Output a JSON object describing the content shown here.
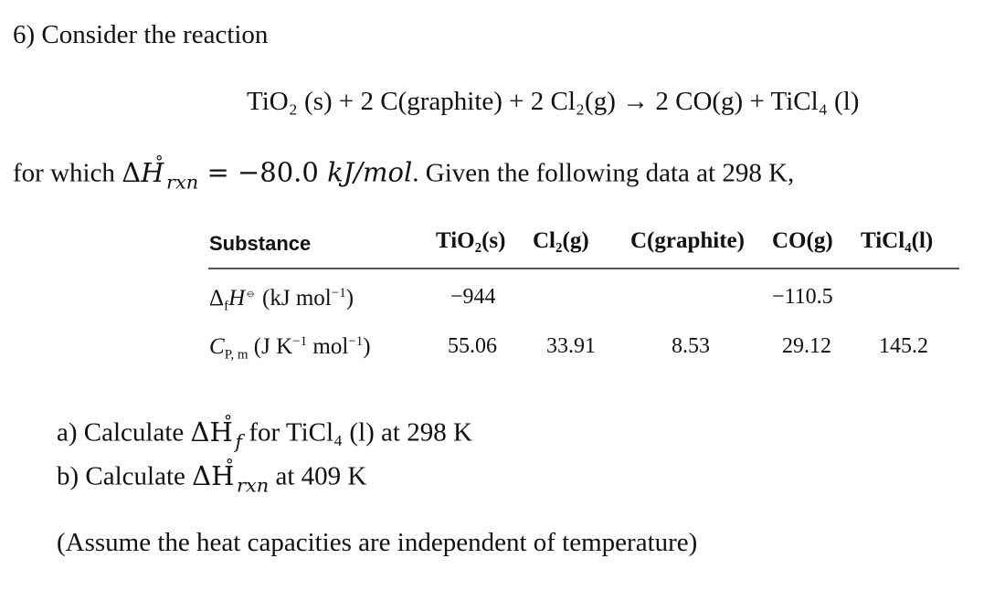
{
  "problem": {
    "title": "6) Consider the reaction",
    "reaction": {
      "lhs": "TiO₂ (s) + 2 C(graphite) + 2 Cl₂(g) → 2 CO(g) + TiCl₄ (l)"
    },
    "for_which": {
      "prefix": "for which ",
      "delta_h": "ΔH",
      "sub": "rxn",
      "equals": " = −80.0 ",
      "units": "kJ/mol",
      "suffix": ". Given the following data at 298 K,"
    }
  },
  "table": {
    "headers": [
      "Substance",
      "TiO₂(s)",
      "Cl₂(g)",
      "C(graphite)",
      "CO(g)",
      "TiCl₄(l)"
    ],
    "row1": {
      "label_main": "Δ",
      "label_f": "f",
      "label_H": "H",
      "label_std": "⦵",
      "label_units": " (kJ mol",
      "label_exp": "−1",
      "label_close": ")",
      "values": [
        "−944",
        "",
        "",
        "−110.5",
        ""
      ]
    },
    "row2": {
      "label_C": "C",
      "label_sub": "P, m",
      "label_units": " (J K",
      "label_exp1": "−1",
      "label_mid": " mol",
      "label_exp2": "−1",
      "label_close": ")",
      "values": [
        "55.06",
        "33.91",
        "8.53",
        "29.12",
        "145.2"
      ]
    }
  },
  "questions": {
    "a": {
      "prefix": "a)  Calculate ",
      "delta": "ΔH",
      "sub": "f",
      "suffix": " for TiCl₄ (l) at 298 K"
    },
    "b": {
      "prefix": "b)  Calculate ",
      "delta": "ΔH",
      "sub": "rxn",
      "suffix": " at 409 K"
    }
  },
  "note": "(Assume the heat capacities are independent of temperature)"
}
